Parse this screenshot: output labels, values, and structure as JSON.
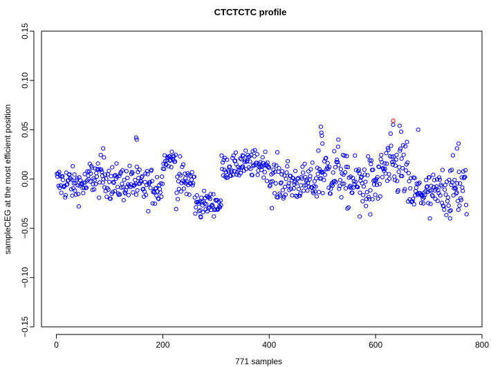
{
  "chart_data": {
    "type": "scatter",
    "title": "CTCTCTC profile",
    "xlabel": "771 samples",
    "ylabel": "sampleCEG at the most efficient position",
    "xlim": [
      -28,
      800
    ],
    "ylim": [
      -0.15,
      0.15
    ],
    "x_ticks": [
      0,
      200,
      400,
      600,
      800
    ],
    "y_ticks": [
      -0.15,
      -0.1,
      -0.05,
      0.0,
      0.05,
      0.1,
      0.15
    ],
    "x_tick_labels": [
      "0",
      "200",
      "400",
      "600",
      "800"
    ],
    "y_tick_labels": [
      "−0.15",
      "−0.10",
      "−0.05",
      "0.00",
      "0.05",
      "0.10",
      "0.15"
    ],
    "n": 771,
    "grid": false,
    "legend": "none",
    "point_color": "#0000ff",
    "highlight_color": "#ff0000",
    "highlight": {
      "x": 633,
      "y": 0.059
    },
    "segments": [
      {
        "x0": 1,
        "x1": 30,
        "center": -0.004,
        "spread": 0.012
      },
      {
        "x0": 30,
        "x1": 60,
        "center": -0.006,
        "spread": 0.011
      },
      {
        "x0": 60,
        "x1": 100,
        "center": 0.002,
        "spread": 0.013
      },
      {
        "x0": 100,
        "x1": 150,
        "center": -0.004,
        "spread": 0.012
      },
      {
        "x0": 150,
        "x1": 200,
        "center": -0.008,
        "spread": 0.013
      },
      {
        "x0": 200,
        "x1": 225,
        "center": 0.02,
        "spread": 0.006
      },
      {
        "x0": 225,
        "x1": 260,
        "center": -0.003,
        "spread": 0.014
      },
      {
        "x0": 260,
        "x1": 310,
        "center": -0.025,
        "spread": 0.008
      },
      {
        "x0": 310,
        "x1": 345,
        "center": 0.012,
        "spread": 0.008
      },
      {
        "x0": 345,
        "x1": 400,
        "center": 0.015,
        "spread": 0.009
      },
      {
        "x0": 400,
        "x1": 435,
        "center": -0.002,
        "spread": 0.015
      },
      {
        "x0": 435,
        "x1": 490,
        "center": -0.004,
        "spread": 0.012
      },
      {
        "x0": 490,
        "x1": 540,
        "center": 0.006,
        "spread": 0.018
      },
      {
        "x0": 540,
        "x1": 610,
        "center": -0.004,
        "spread": 0.017
      },
      {
        "x0": 610,
        "x1": 660,
        "center": 0.01,
        "spread": 0.02
      },
      {
        "x0": 660,
        "x1": 720,
        "center": -0.015,
        "spread": 0.014
      },
      {
        "x0": 720,
        "x1": 771,
        "center": -0.01,
        "spread": 0.018
      }
    ],
    "extra_points": [
      {
        "x": 88,
        "y": 0.031
      },
      {
        "x": 150,
        "y": 0.042
      },
      {
        "x": 151,
        "y": 0.04
      },
      {
        "x": 497,
        "y": 0.053
      },
      {
        "x": 498,
        "y": 0.047
      },
      {
        "x": 499,
        "y": 0.044
      },
      {
        "x": 500,
        "y": 0.036
      },
      {
        "x": 633,
        "y": 0.055
      },
      {
        "x": 645,
        "y": 0.054
      },
      {
        "x": 648,
        "y": 0.048
      },
      {
        "x": 680,
        "y": 0.05
      },
      {
        "x": 756,
        "y": 0.036
      },
      {
        "x": 702,
        "y": -0.04
      },
      {
        "x": 740,
        "y": -0.04
      },
      {
        "x": 570,
        "y": -0.038
      },
      {
        "x": 271,
        "y": -0.038
      },
      {
        "x": 590,
        "y": -0.036
      },
      {
        "x": 753,
        "y": 0.031
      },
      {
        "x": 530,
        "y": 0.04
      },
      {
        "x": 350,
        "y": 0.024
      }
    ]
  }
}
